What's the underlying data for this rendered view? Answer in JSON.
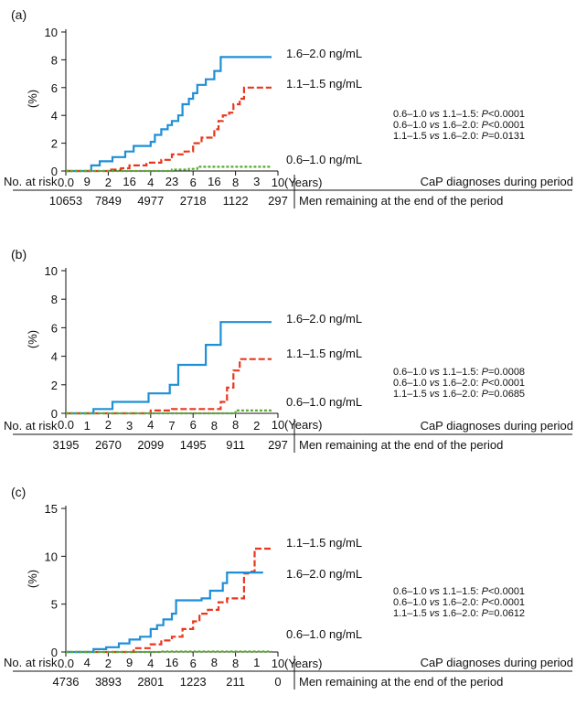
{
  "colors": {
    "high": "#1f8fd6",
    "mid": "#e8371e",
    "low": "#5aaa32",
    "axis": "#111111"
  },
  "axis_xlabel": "(Years)",
  "axis_ylabel": "(%)",
  "risk_header": "No. at risk",
  "row1_label": "CaP diagnoses during period",
  "row2_label": "Men remaining at the end of the period",
  "chart_data": [
    {
      "panel": "(a)",
      "type": "line",
      "step": true,
      "xlim": [
        0,
        10
      ],
      "ylim": [
        0,
        10
      ],
      "xticks": [
        "0.0",
        "2",
        "4",
        "6",
        "8",
        "10"
      ],
      "yticks": [
        "0",
        "2",
        "4",
        "6",
        "8",
        "10"
      ],
      "series": [
        {
          "name": "1.6–2.0 ng/mL",
          "color": "#1f8fd6",
          "dash": "solid",
          "x": [
            0,
            1.0,
            1.2,
            1.6,
            2.2,
            2.8,
            3.2,
            4.0,
            4.2,
            4.5,
            4.8,
            5.0,
            5.3,
            5.5,
            5.8,
            6.0,
            6.2,
            6.6,
            7.0,
            7.3,
            7.5,
            9.7
          ],
          "y": [
            0,
            0,
            0.4,
            0.7,
            1.0,
            1.4,
            1.8,
            2.1,
            2.6,
            3.0,
            3.3,
            3.6,
            4.0,
            4.8,
            5.2,
            5.6,
            6.2,
            6.6,
            7.2,
            8.2,
            8.2,
            8.2
          ]
        },
        {
          "name": "1.1–1.5 ng/mL",
          "color": "#e8371e",
          "dash": "dashed",
          "x": [
            0,
            1.4,
            2.0,
            2.6,
            3.0,
            3.8,
            4.5,
            5.0,
            5.6,
            6.0,
            6.4,
            6.8,
            7.0,
            7.2,
            7.4,
            7.7,
            7.9,
            8.2,
            8.4,
            8.6,
            8.7,
            9.7
          ],
          "y": [
            0,
            0,
            0.1,
            0.2,
            0.4,
            0.6,
            0.8,
            1.2,
            1.4,
            2.0,
            2.4,
            2.4,
            3.0,
            3.6,
            4.0,
            4.2,
            4.8,
            5.2,
            6.0,
            6.0,
            6.0,
            6.0
          ]
        },
        {
          "name": "0.6–1.0 ng/mL",
          "color": "#5aaa32",
          "dash": "dotted",
          "x": [
            0,
            3.8,
            5.0,
            5.8,
            6.2,
            9.7
          ],
          "y": [
            0,
            0,
            0.1,
            0.15,
            0.3,
            0.3
          ]
        }
      ],
      "labels": [
        "1.6–2.0 ng/mL",
        "1.1–1.5 ng/mL",
        "0.6–1.0 ng/mL"
      ],
      "pvals": [
        "0.6–1.0 vs 1.1–1.5: P<0.0001",
        "0.6–1.0 vs 1.6–2.0: P<0.0001",
        "1.1–1.5 vs 1.6–2.0: P=0.0131"
      ],
      "risk_row1": [
        "9",
        "16",
        "23",
        "16",
        "3"
      ],
      "risk_row2": [
        "10653",
        "7849",
        "4977",
        "2718",
        "1122",
        "297"
      ]
    },
    {
      "panel": "(b)",
      "type": "line",
      "step": true,
      "xlim": [
        0,
        10
      ],
      "ylim": [
        0,
        10
      ],
      "xticks": [
        "0.0",
        "2",
        "4",
        "6",
        "8",
        "10"
      ],
      "yticks": [
        "0",
        "2",
        "4",
        "6",
        "8",
        "10"
      ],
      "series": [
        {
          "name": "1.6–2.0 ng/mL",
          "color": "#1f8fd6",
          "dash": "solid",
          "x": [
            0,
            1.3,
            2.2,
            3.9,
            4.9,
            5.3,
            6.6,
            7.3,
            9.7
          ],
          "y": [
            0,
            0.3,
            0.8,
            1.4,
            2.0,
            3.4,
            4.8,
            6.4,
            6.4
          ]
        },
        {
          "name": "1.1–1.5 ng/mL",
          "color": "#e8371e",
          "dash": "dashed",
          "x": [
            0,
            3.0,
            4.0,
            5.0,
            7.3,
            7.6,
            7.9,
            8.2,
            9.7
          ],
          "y": [
            0,
            0,
            0.2,
            0.3,
            0.8,
            1.8,
            3.0,
            3.8,
            3.8
          ]
        },
        {
          "name": "0.6–1.0 ng/mL",
          "color": "#5aaa32",
          "dash": "dotted",
          "x": [
            0,
            5.0,
            8.0,
            9.7
          ],
          "y": [
            0,
            0,
            0.2,
            0.2
          ]
        }
      ],
      "labels": [
        "1.6–2.0 ng/mL",
        "1.1–1.5 ng/mL",
        "0.6–1.0 ng/mL"
      ],
      "pvals": [
        "0.6–1.0 vs 1.1–1.5: P=0.0008",
        "0.6–1.0 vs 1.6–2.0: P<0.0001",
        "1.1–1.5 vs 1.6–2.0: P=0.0685"
      ],
      "risk_row1": [
        "1",
        "3",
        "7",
        "8",
        "2"
      ],
      "risk_row2": [
        "3195",
        "2670",
        "2099",
        "1495",
        "911",
        "297"
      ]
    },
    {
      "panel": "(c)",
      "type": "line",
      "step": true,
      "xlim": [
        0,
        10
      ],
      "ylim": [
        0,
        15
      ],
      "xticks": [
        "0.0",
        "2",
        "4",
        "6",
        "8",
        "10"
      ],
      "yticks": [
        "0",
        "5",
        "10",
        "15"
      ],
      "series": [
        {
          "name": "1.1–1.5 ng/mL",
          "color": "#e8371e",
          "dash": "dashed",
          "x": [
            0,
            2.5,
            3.2,
            4.0,
            4.5,
            5.0,
            5.5,
            6.0,
            6.3,
            6.7,
            7.2,
            7.6,
            8.0,
            8.4,
            8.6,
            8.9,
            9.7
          ],
          "y": [
            0,
            0,
            0.4,
            0.8,
            1.2,
            1.6,
            2.4,
            3.2,
            4.0,
            4.4,
            5.2,
            5.6,
            5.6,
            8.2,
            8.4,
            10.8,
            10.8
          ]
        },
        {
          "name": "1.6–2.0 ng/mL",
          "color": "#1f8fd6",
          "dash": "solid",
          "x": [
            0,
            1.3,
            1.9,
            2.5,
            3.0,
            3.5,
            4.0,
            4.3,
            4.6,
            5.0,
            5.2,
            6.4,
            6.8,
            7.4,
            7.6,
            9.3
          ],
          "y": [
            0,
            0.3,
            0.5,
            0.9,
            1.3,
            1.6,
            2.4,
            2.8,
            3.4,
            4.0,
            5.4,
            5.6,
            6.4,
            7.2,
            8.3,
            8.3
          ]
        },
        {
          "name": "0.6–1.0 ng/mL",
          "color": "#5aaa32",
          "dash": "dotted",
          "x": [
            0,
            4.5,
            9.7
          ],
          "y": [
            0,
            0.05,
            0.05
          ]
        }
      ],
      "labels": [
        "1.1–1.5 ng/mL",
        "1.6–2.0 ng/mL",
        "0.6–1.0 ng/mL"
      ],
      "pvals": [
        "0.6–1.0 vs 1.1–1.5: P<0.0001",
        "0.6–1.0 vs 1.6–2.0: P<0.0001",
        "1.1–1.5 vs 1.6–2.0: P=0.0612"
      ],
      "risk_row1": [
        "4",
        "9",
        "16",
        "8",
        "1"
      ],
      "risk_row2": [
        "4736",
        "3893",
        "2801",
        "1223",
        "211",
        "0"
      ]
    }
  ]
}
